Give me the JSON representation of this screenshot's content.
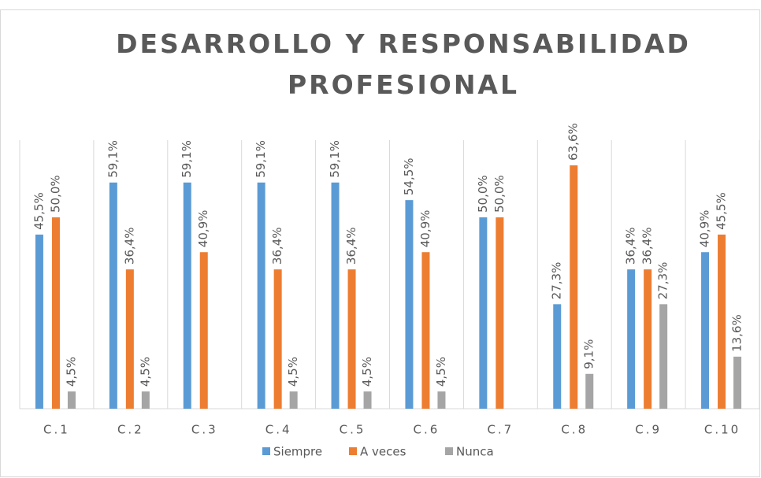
{
  "chart_data": {
    "type": "bar",
    "title": "DESARROLLO Y RESPONSABILIDAD PROFESIONAL",
    "categories": [
      "C.1",
      "C.2",
      "C.3",
      "C.4",
      "C.5",
      "C.6",
      "C.7",
      "C.8",
      "C.9",
      "C.10"
    ],
    "series": [
      {
        "name": "Siempre",
        "color": "#5b9bd5",
        "values": [
          45.5,
          59.1,
          59.1,
          59.1,
          59.1,
          54.5,
          50.0,
          27.3,
          36.4,
          40.9
        ],
        "value_labels": [
          "45,5%",
          "59,1%",
          "59,1%",
          "59,1%",
          "59,1%",
          "54,5%",
          "50,0%",
          "27,3%",
          "36,4%",
          "40,9%"
        ]
      },
      {
        "name": "A veces",
        "color": "#ed7d31",
        "values": [
          50.0,
          36.4,
          40.9,
          36.4,
          36.4,
          40.9,
          50.0,
          63.6,
          36.4,
          45.5
        ],
        "value_labels": [
          "50,0%",
          "36,4%",
          "40,9%",
          "36,4%",
          "36,4%",
          "40,9%",
          "50,0%",
          "63,6%",
          "36,4%",
          "45,5%"
        ]
      },
      {
        "name": "Nunca",
        "color": "#a5a5a5",
        "values": [
          4.5,
          4.5,
          null,
          4.5,
          4.5,
          4.5,
          null,
          9.1,
          27.3,
          13.6
        ],
        "value_labels": [
          "4,5%",
          "4,5%",
          null,
          "4,5%",
          "4,5%",
          "4,5%",
          null,
          "9,1%",
          "27,3%",
          "13,6%"
        ]
      }
    ],
    "legend": "bottom"
  }
}
